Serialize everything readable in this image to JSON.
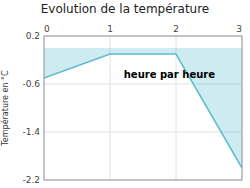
{
  "chart_data": {
    "type": "area",
    "title": "Evolution de la température",
    "y_label": "Température en °C",
    "x": [
      0,
      1,
      2,
      3
    ],
    "series": [
      {
        "name": null,
        "values": [
          -0.5,
          -0.1,
          -0.1,
          -2.0
        ],
        "color": "#5bbccc"
      }
    ],
    "xlim": [
      0,
      3
    ],
    "ylim": [
      -2.2,
      0.2
    ],
    "xticks": [
      0,
      1,
      2,
      3
    ],
    "yticks": [
      0.2,
      -0.6,
      -1.4,
      -2.2
    ],
    "grid": true,
    "annotations": [
      {
        "text": "heure par heure",
        "x": 1.9,
        "y": -0.45
      }
    ]
  }
}
